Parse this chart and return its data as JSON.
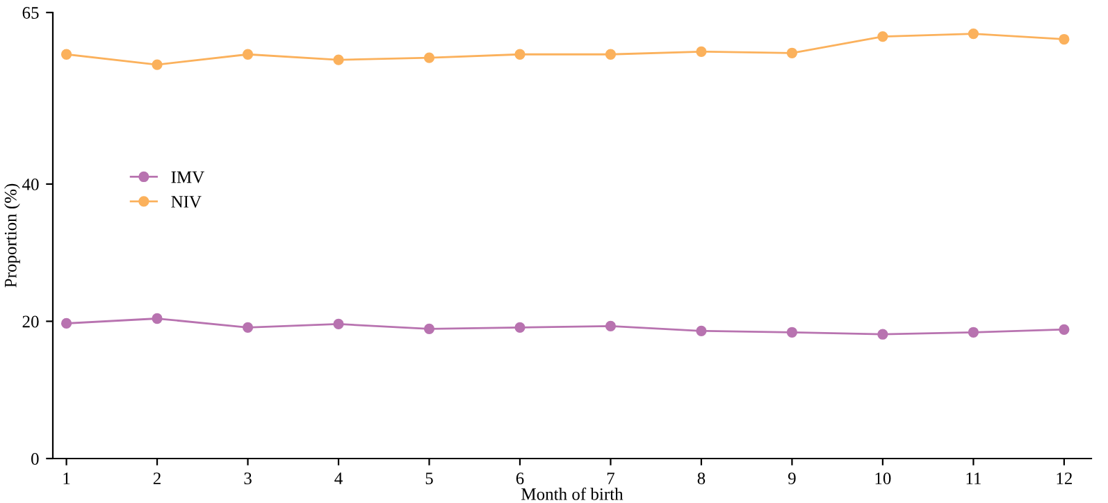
{
  "chart_data": {
    "type": "line",
    "xlabel": "Month of birth",
    "ylabel": "Proportion (%)",
    "x": [
      1,
      2,
      3,
      4,
      5,
      6,
      7,
      8,
      9,
      10,
      11,
      12
    ],
    "xlim": [
      0.85,
      12.3
    ],
    "xticks": [
      1,
      2,
      3,
      4,
      5,
      6,
      7,
      8,
      9,
      10,
      11,
      12
    ],
    "ylim": [
      0,
      65
    ],
    "yticks": [
      0,
      20,
      40,
      65
    ],
    "series": [
      {
        "name": "IMV",
        "color": "#b873b0",
        "values": [
          19.7,
          20.4,
          19.1,
          19.6,
          18.9,
          19.1,
          19.3,
          18.6,
          18.4,
          18.1,
          18.4,
          18.8
        ]
      },
      {
        "name": "NIV",
        "color": "#fbb15c",
        "values": [
          58.9,
          57.4,
          58.9,
          58.1,
          58.4,
          58.9,
          58.9,
          59.3,
          59.1,
          61.5,
          61.9,
          61.1
        ]
      }
    ],
    "marker": "circle",
    "line_style": "solid",
    "grid": false,
    "legend": "left"
  }
}
